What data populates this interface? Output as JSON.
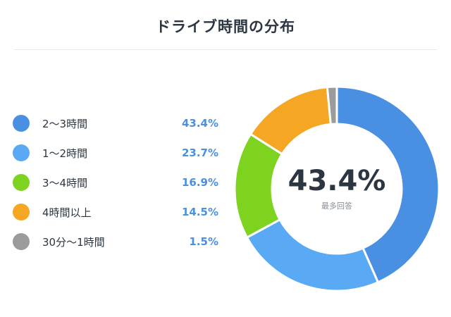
{
  "title": "ドライブ時間の分布",
  "chart_data": {
    "type": "pie",
    "categories": [
      "2〜3時間",
      "1〜2時間",
      "3〜4時間",
      "4時間以上",
      "30分〜1時間"
    ],
    "values": [
      43.4,
      23.7,
      16.9,
      14.5,
      1.5
    ],
    "value_labels": [
      "43.4%",
      "23.7%",
      "16.9%",
      "14.5%",
      "1.5%"
    ],
    "colors": [
      "#4a90e2",
      "#5aa9f5",
      "#7ed321",
      "#f5a623",
      "#9b9b9b"
    ],
    "center_value": "43.4%",
    "center_label": "最多回答",
    "legend_position": "left"
  }
}
